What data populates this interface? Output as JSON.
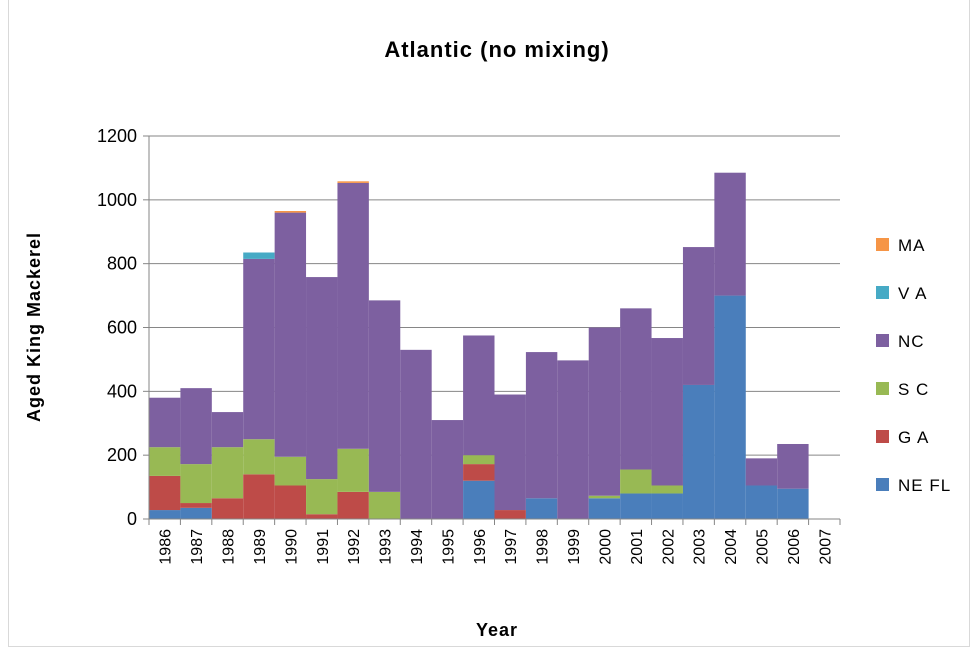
{
  "chart_data": {
    "type": "bar",
    "stacked": true,
    "title": "Atlantic (no mixing)",
    "xlabel": "Year",
    "ylabel": "Aged King Mackerel",
    "ylim": [
      0,
      1200
    ],
    "yticks": [
      0,
      200,
      400,
      600,
      800,
      1000,
      1200
    ],
    "grid": true,
    "legend_position": "right",
    "categories": [
      "1986",
      "1987",
      "1988",
      "1989",
      "1990",
      "1991",
      "1992",
      "1993",
      "1994",
      "1995",
      "1996",
      "1997",
      "1998",
      "1999",
      "2000",
      "2001",
      "2002",
      "2003",
      "2004",
      "2005",
      "2006",
      "2007"
    ],
    "series": [
      {
        "name": "NE  FL",
        "color": "#4a7ebb",
        "values": [
          28,
          35,
          0,
          0,
          0,
          0,
          0,
          0,
          0,
          0,
          120,
          0,
          65,
          0,
          65,
          80,
          80,
          420,
          700,
          105,
          95,
          0
        ]
      },
      {
        "name": "G A",
        "color": "#be4b48",
        "values": [
          107,
          15,
          65,
          140,
          105,
          15,
          85,
          0,
          0,
          0,
          52,
          28,
          0,
          0,
          0,
          0,
          0,
          0,
          0,
          0,
          0,
          0
        ]
      },
      {
        "name": "S C",
        "color": "#98b954",
        "values": [
          90,
          122,
          160,
          110,
          90,
          110,
          135,
          85,
          0,
          0,
          28,
          0,
          0,
          0,
          8,
          75,
          25,
          0,
          0,
          0,
          0,
          0
        ]
      },
      {
        "name": "NC",
        "color": "#7d60a0",
        "values": [
          155,
          238,
          110,
          565,
          765,
          633,
          833,
          600,
          530,
          310,
          375,
          362,
          458,
          497,
          527,
          505,
          462,
          432,
          385,
          85,
          140,
          0
        ]
      },
      {
        "name": "V A",
        "color": "#46aac5",
        "values": [
          0,
          0,
          0,
          20,
          0,
          0,
          0,
          0,
          0,
          0,
          0,
          0,
          0,
          0,
          0,
          0,
          0,
          0,
          0,
          0,
          0,
          0
        ]
      },
      {
        "name": "MA",
        "color": "#f69546",
        "values": [
          0,
          0,
          0,
          0,
          5,
          0,
          5,
          0,
          0,
          0,
          0,
          0,
          0,
          0,
          0,
          0,
          0,
          0,
          0,
          0,
          0,
          0
        ]
      }
    ]
  }
}
